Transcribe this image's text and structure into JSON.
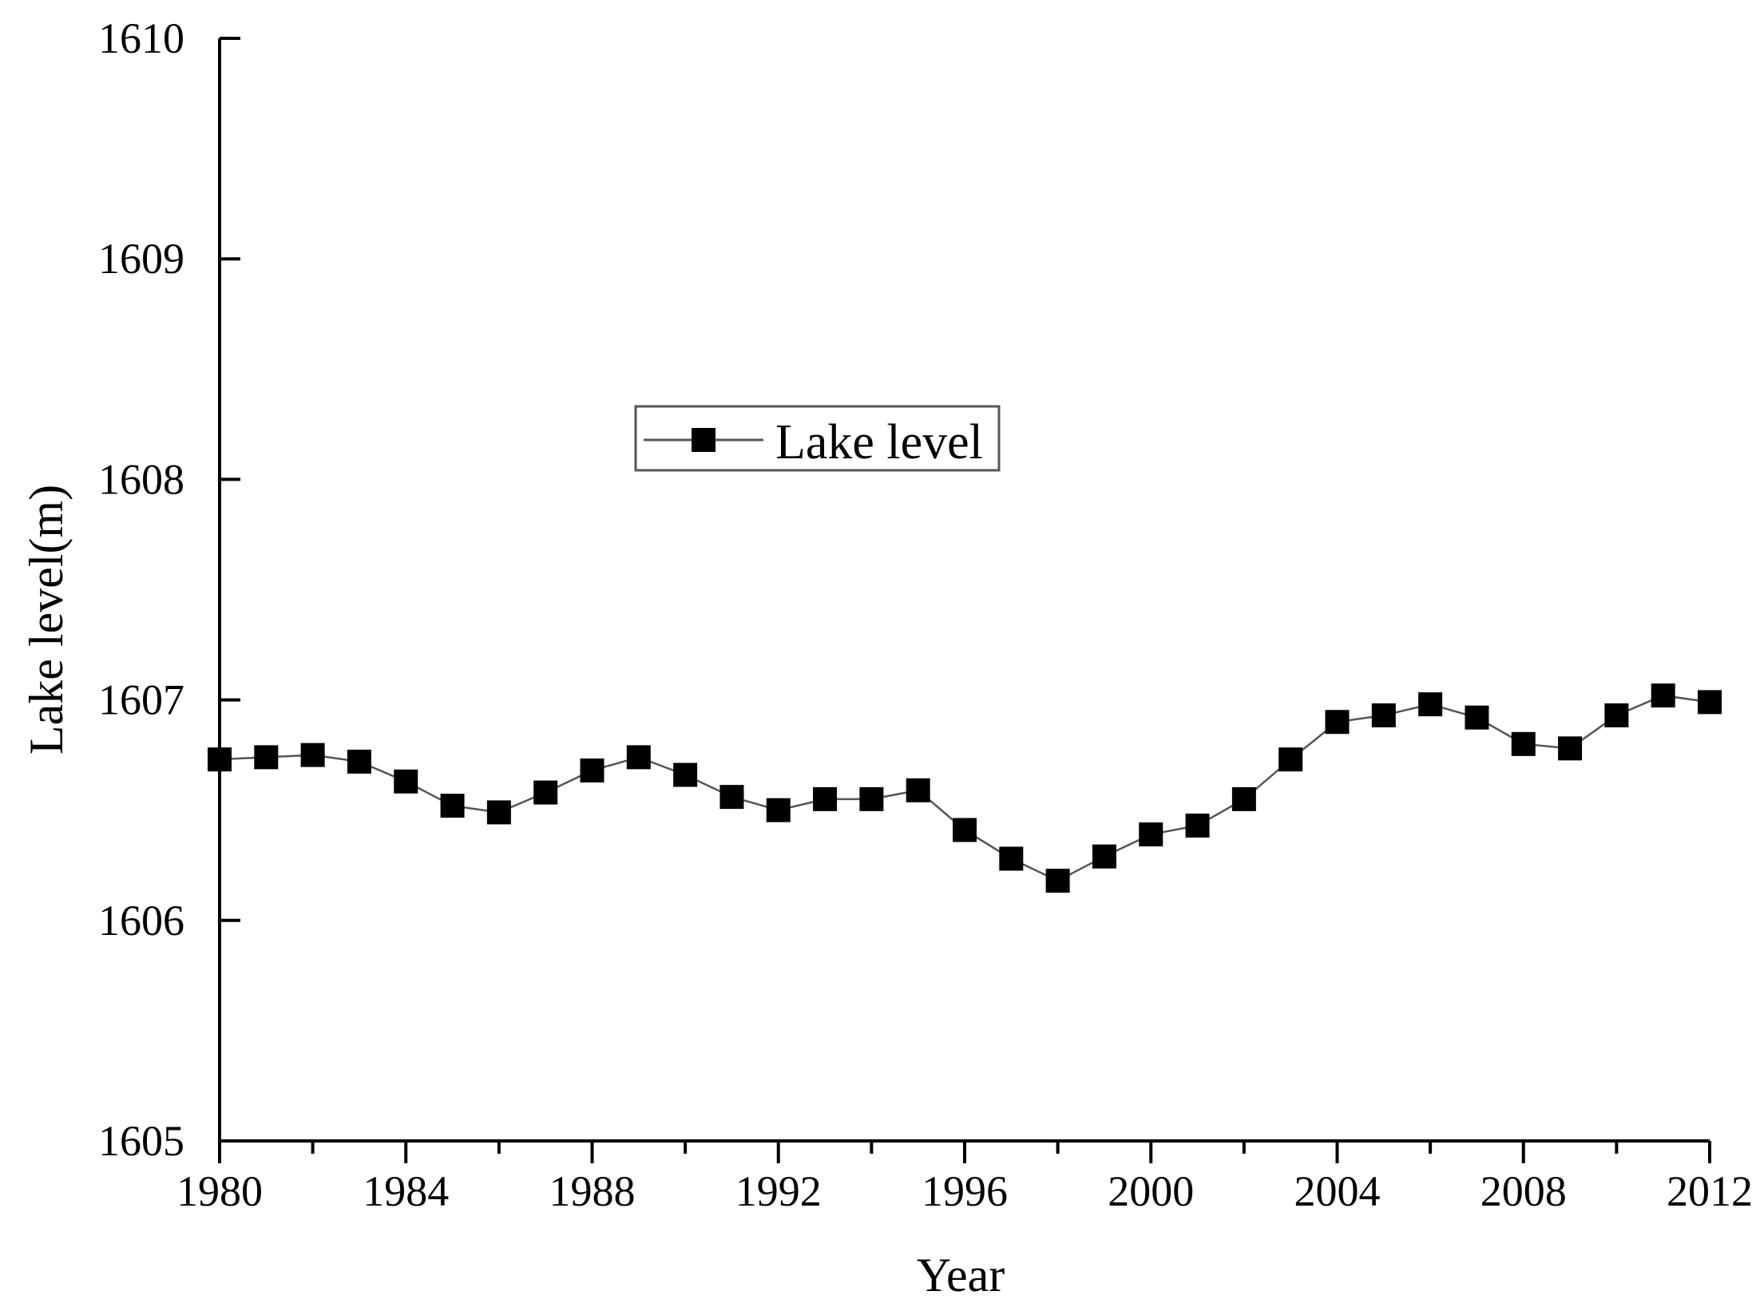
{
  "colors": {
    "axis": "#000000",
    "marker": "#000000",
    "connector_line": "#555555",
    "legend_border": "#555555",
    "background": "#ffffff"
  },
  "chart_data": {
    "type": "line",
    "marker": "square",
    "xlabel": "Year",
    "ylabel": "Lake level(m)",
    "xlim": [
      1980,
      2012
    ],
    "ylim": [
      1605,
      1610
    ],
    "x_ticks": [
      1980,
      1984,
      1988,
      1992,
      1996,
      2000,
      2004,
      2008,
      2012
    ],
    "y_ticks": [
      1605,
      1606,
      1607,
      1608,
      1609,
      1610
    ],
    "grid": false,
    "legend": {
      "position": "upper-center"
    },
    "series": [
      {
        "name": "Lake level",
        "x": [
          1980,
          1981,
          1982,
          1983,
          1984,
          1985,
          1986,
          1987,
          1988,
          1989,
          1990,
          1991,
          1992,
          1993,
          1994,
          1995,
          1996,
          1997,
          1998,
          1999,
          2000,
          2001,
          2002,
          2003,
          2004,
          2005,
          2006,
          2007,
          2008,
          2009,
          2010,
          2011,
          2012
        ],
        "values": [
          1606.73,
          1606.74,
          1606.75,
          1606.72,
          1606.63,
          1606.52,
          1606.49,
          1606.58,
          1606.68,
          1606.74,
          1606.66,
          1606.56,
          1606.5,
          1606.55,
          1606.55,
          1606.59,
          1606.41,
          1606.28,
          1606.18,
          1606.29,
          1606.39,
          1606.43,
          1606.55,
          1606.73,
          1606.9,
          1606.93,
          1606.98,
          1606.92,
          1606.8,
          1606.78,
          1606.93,
          1607.02,
          1606.99
        ]
      }
    ]
  }
}
